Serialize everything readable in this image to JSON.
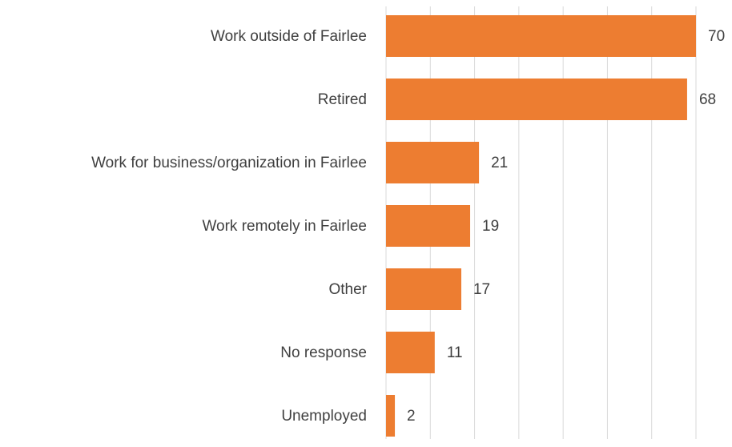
{
  "chart_data": {
    "type": "bar",
    "orientation": "horizontal",
    "categories": [
      "Work outside of Fairlee",
      "Retired",
      "Work for business/organization in Fairlee",
      "Work remotely in Fairlee",
      "Other",
      "No response",
      "Unemployed"
    ],
    "values": [
      70,
      68,
      21,
      19,
      17,
      11,
      2
    ],
    "color": "#ed7d31",
    "xlim": [
      0,
      70
    ],
    "xticks": [
      0,
      10,
      20,
      30,
      40,
      50,
      60,
      70
    ],
    "grid": true
  }
}
